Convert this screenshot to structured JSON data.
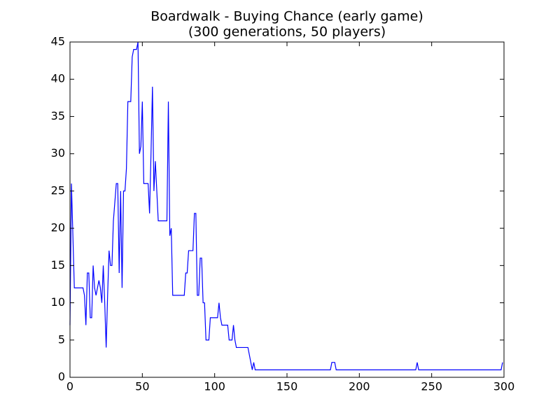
{
  "chart_data": {
    "type": "line",
    "title": "Boardwalk - Buying Chance (early game)",
    "subtitle": "(300 generations, 50 players)",
    "xlim": [
      0,
      300
    ],
    "xticks": [
      0,
      50,
      100,
      150,
      200,
      250,
      300
    ],
    "ylim": [
      0,
      45
    ],
    "yticks": [
      0,
      5,
      10,
      15,
      20,
      25,
      30,
      35,
      40,
      45
    ],
    "grid": false,
    "series": [
      {
        "color": "#0000ff",
        "x": [
          0,
          1,
          3,
          9,
          10,
          11,
          12,
          13,
          14,
          15,
          16,
          17,
          18,
          19,
          20,
          21,
          22,
          23,
          24,
          25,
          26,
          27,
          28,
          29,
          30,
          32,
          33,
          34,
          35,
          36,
          37,
          38,
          39,
          40,
          42,
          43,
          44,
          46,
          47,
          48,
          49,
          50,
          51,
          54,
          55,
          56,
          57,
          58,
          59,
          60,
          61,
          67,
          68,
          69,
          70,
          71,
          79,
          80,
          81,
          82,
          85,
          86,
          87,
          88,
          89,
          90,
          91,
          92,
          93,
          94,
          96,
          97,
          102,
          103,
          104,
          105,
          109,
          110,
          112,
          113,
          114,
          115,
          123,
          125,
          126,
          127,
          128,
          180,
          181,
          183,
          184,
          239,
          240,
          241,
          298,
          299
        ],
        "values": [
          7,
          26,
          12,
          12,
          11,
          7,
          14,
          14,
          8,
          8,
          15,
          12,
          11,
          12,
          13,
          12,
          10,
          15,
          10,
          4,
          11,
          17,
          15,
          15,
          21,
          26,
          26,
          14,
          25,
          12,
          25,
          25,
          28,
          37,
          37,
          43,
          44,
          44,
          45,
          30,
          31,
          37,
          26,
          26,
          22,
          30,
          39,
          25,
          29,
          25,
          21,
          21,
          37,
          19,
          20,
          11,
          11,
          14,
          14,
          17,
          17,
          22,
          22,
          11,
          11,
          16,
          16,
          10,
          10,
          5,
          5,
          8,
          8,
          10,
          8,
          7,
          7,
          5,
          5,
          7,
          5,
          4,
          4,
          2,
          1,
          2,
          1,
          1,
          2,
          2,
          1,
          1,
          2,
          1,
          1,
          2
        ]
      }
    ]
  }
}
